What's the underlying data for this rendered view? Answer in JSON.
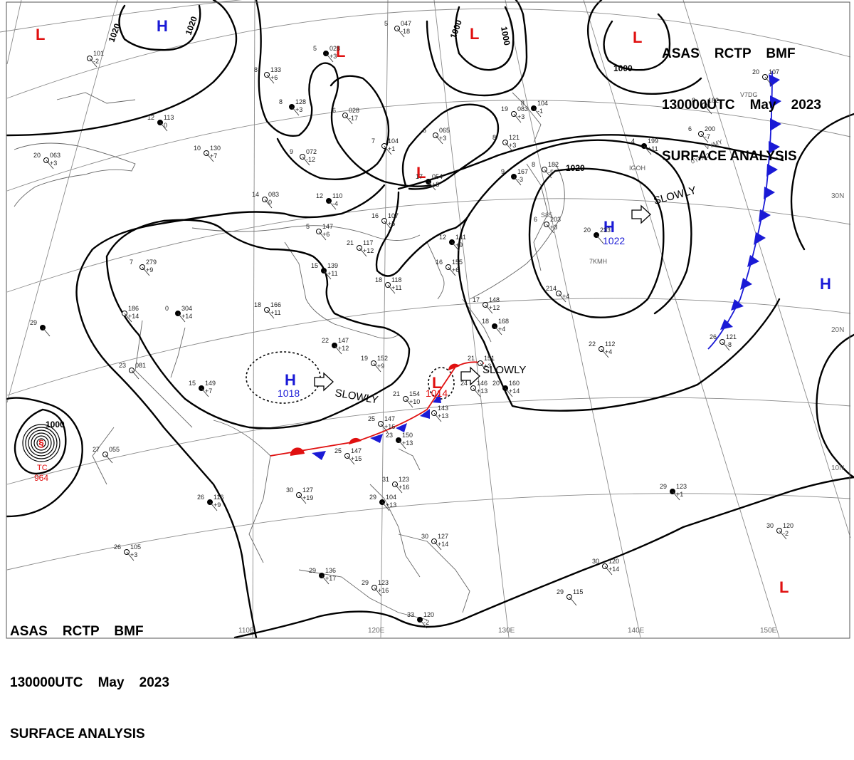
{
  "header": {
    "line1": "ASAS    RCTP    BMF",
    "line2": "130000UTC    May    2023",
    "line3": "SURFACE ANALYSIS"
  },
  "longitude_labels": [
    "110E",
    "120E",
    "130E",
    "140E",
    "150E"
  ],
  "latitude_labels": [
    "30N",
    "20N",
    "10N"
  ],
  "pressure_systems": [
    {
      "type": "H",
      "value": "1022"
    },
    {
      "type": "H",
      "value": "1018"
    },
    {
      "type": "L",
      "value": "1014"
    },
    {
      "type": "TC",
      "value": "964"
    },
    {
      "type": "H",
      "value": ""
    },
    {
      "type": "L",
      "value": ""
    }
  ],
  "isobar_labels": [
    "1020",
    "1020",
    "1000",
    "1000",
    "1000",
    "1020",
    "1000"
  ],
  "motion_labels": [
    "SLOWLY",
    "SLOWLY",
    "SLOWLY"
  ],
  "colors": {
    "high": "#1a1ad6",
    "low": "#e01010",
    "isobar": "#000000",
    "grid": "#888888"
  },
  "stations": [
    {
      "t": "12",
      "p": "113",
      "d": "0"
    },
    {
      "t": "10",
      "p": "130",
      "d": "+7"
    },
    {
      "t": "14",
      "p": "083",
      "d": "0"
    },
    {
      "t": "12",
      "p": "110",
      "d": "-4"
    },
    {
      "t": "7",
      "p": "104",
      "d": "+1"
    },
    {
      "t": "6",
      "p": "065",
      "d": "+3"
    },
    {
      "t": "17",
      "p": "054",
      "d": "+8"
    },
    {
      "t": "16",
      "p": "107",
      "d": "+5"
    },
    {
      "t": "21",
      "p": "117",
      "d": "+12"
    },
    {
      "t": "15",
      "p": "139",
      "d": "+11"
    },
    {
      "t": "18",
      "p": "118",
      "d": "+11"
    },
    {
      "t": "7",
      "p": "279",
      "d": "+9"
    },
    {
      "t": "0",
      "p": "304",
      "d": "+14"
    },
    {
      "t": "",
      "p": "186",
      "d": "+14"
    },
    {
      "t": "18",
      "p": "166",
      "d": "+11"
    },
    {
      "t": "22",
      "p": "147",
      "d": "+12"
    },
    {
      "t": "19",
      "p": "152",
      "d": "+9"
    },
    {
      "t": "23",
      "p": "081",
      "d": ""
    },
    {
      "t": "15",
      "p": "149",
      "d": "+7"
    },
    {
      "t": "21",
      "p": "154",
      "d": "+10"
    },
    {
      "t": "25",
      "p": "147",
      "d": "+16"
    },
    {
      "t": "23",
      "p": "150",
      "d": "+13"
    },
    {
      "t": "25",
      "p": "147",
      "d": "+15"
    },
    {
      "t": "27",
      "p": "055",
      "d": ""
    },
    {
      "t": "26",
      "p": "116",
      "d": "+9"
    },
    {
      "t": "30",
      "p": "127",
      "d": "+19"
    },
    {
      "t": "31",
      "p": "123",
      "d": "+16"
    },
    {
      "t": "29",
      "p": "104",
      "d": "+13"
    },
    {
      "t": "30",
      "p": "127",
      "d": "+14"
    },
    {
      "t": "29",
      "p": "123",
      "d": "+16"
    },
    {
      "t": "29",
      "p": "136",
      "d": "+17"
    },
    {
      "t": "26",
      "p": "105",
      "d": "+3"
    },
    {
      "t": "29",
      "p": "115",
      "d": ""
    },
    {
      "t": "33",
      "p": "120",
      "d": "-2"
    },
    {
      "t": "30",
      "p": "120",
      "d": "+14"
    },
    {
      "t": "30",
      "p": "120",
      "d": "-2"
    },
    {
      "t": "29",
      "p": "123",
      "d": "+1"
    },
    {
      "t": "22",
      "p": "112",
      "d": "+4"
    },
    {
      "t": "26",
      "p": "121",
      "d": "-8"
    },
    {
      "t": "20",
      "p": "233",
      "d": ""
    },
    {
      "t": "6",
      "p": "203",
      "d": "+3"
    },
    {
      "t": "214",
      "p": "",
      "d": "+4"
    },
    {
      "t": "4",
      "p": "199",
      "d": "+11"
    },
    {
      "t": "6",
      "p": "200",
      "d": "-7"
    },
    {
      "t": "8",
      "p": "182",
      "d": ""
    },
    {
      "t": "9",
      "p": "167",
      "d": "-3"
    },
    {
      "t": "8",
      "p": "182",
      "d": "-5"
    },
    {
      "t": "8",
      "p": "121",
      "d": "+3"
    },
    {
      "t": "12",
      "p": "141",
      "d": "+9"
    },
    {
      "t": "16",
      "p": "155",
      "d": "+6"
    },
    {
      "t": "17",
      "p": "148",
      "d": "+12"
    },
    {
      "t": "18",
      "p": "168",
      "d": "+4"
    },
    {
      "t": "21",
      "p": "151",
      "d": "+3"
    },
    {
      "t": "24",
      "p": "146",
      "d": "+13"
    },
    {
      "t": "20",
      "p": "160",
      "d": "+14"
    },
    {
      "t": "",
      "p": "143",
      "d": "+13"
    },
    {
      "t": "5",
      "p": "047",
      "d": "-18"
    },
    {
      "t": "5",
      "p": "028",
      "d": "+3"
    },
    {
      "t": "6",
      "p": "028",
      "d": "-17"
    },
    {
      "t": "9",
      "p": "072",
      "d": "-12"
    },
    {
      "t": "8",
      "p": "128",
      "d": "+3"
    },
    {
      "t": "8",
      "p": "133",
      "d": "+6"
    },
    {
      "t": "20",
      "p": "063",
      "d": "+3"
    },
    {
      "t": "29",
      "p": "",
      "d": ""
    },
    {
      "t": "",
      "p": "101",
      "d": "-2"
    },
    {
      "t": "19",
      "p": "083",
      "d": "+3"
    },
    {
      "t": "8",
      "p": "104",
      "d": "-1"
    },
    {
      "t": "20",
      "p": "107",
      "d": ""
    },
    {
      "t": "5",
      "p": "147",
      "d": "+6"
    }
  ],
  "station_codes": [
    "IGOH",
    "0YHL2",
    "VYMY",
    "V7DG",
    "7KMH",
    "S85"
  ]
}
